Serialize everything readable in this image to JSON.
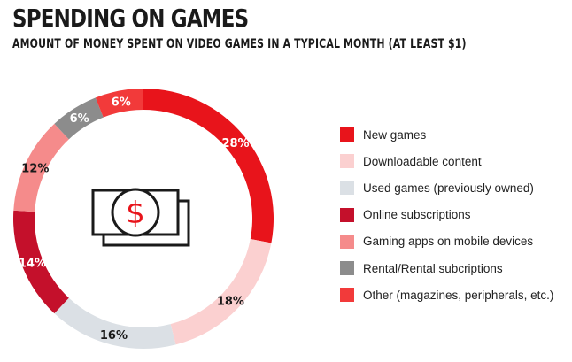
{
  "header": {
    "title": "SPENDING ON GAMES",
    "subtitle": "AMOUNT OF MONEY SPENT ON VIDEO GAMES IN A TYPICAL MONTH (AT LEAST $1)"
  },
  "center_icon": "dollar-bill-icon",
  "chart_data": {
    "type": "pie",
    "style": "donut",
    "legend": "right",
    "unit": "%",
    "categories": [
      "New games",
      "Downloadable content",
      "Used games (previously owned)",
      "Online subscriptions",
      "Gaming apps on mobile devices",
      "Rental/Rental subcriptions",
      "Other (magazines, peripherals, etc.)"
    ],
    "values": [
      28,
      18,
      16,
      14,
      12,
      6,
      6
    ],
    "labels": [
      "28%",
      "18%",
      "16%",
      "14%",
      "12%",
      "6%",
      "6%"
    ],
    "colors": [
      "#e8141b",
      "#fbd0d0",
      "#dbe0e5",
      "#c4102b",
      "#f58b8b",
      "#8c8c8c",
      "#f23a3a"
    ],
    "label_colors": [
      "#ffffff",
      "#1a1a1a",
      "#1a1a1a",
      "#ffffff",
      "#1a1a1a",
      "#ffffff",
      "#ffffff"
    ]
  }
}
